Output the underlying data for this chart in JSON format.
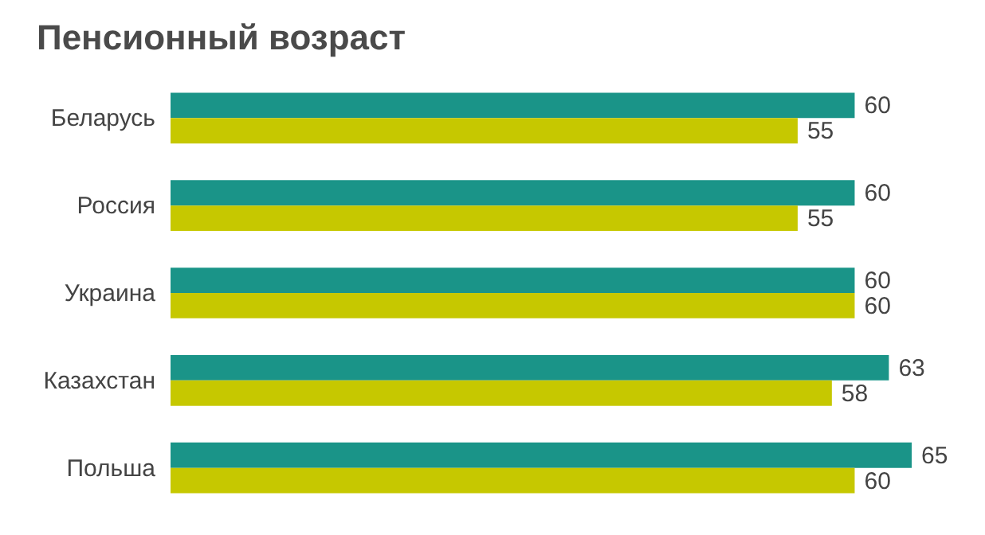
{
  "chart_data": {
    "type": "bar",
    "orientation": "horizontal",
    "title": "Пенсионный возраст",
    "categories": [
      "Беларусь",
      "Россия",
      "Украина",
      "Казахстан",
      "Польша"
    ],
    "series": [
      {
        "color": "#1a9488",
        "values": [
          60,
          60,
          60,
          63,
          65
        ]
      },
      {
        "color": "#c6c800",
        "values": [
          55,
          55,
          60,
          58,
          60
        ]
      }
    ],
    "tick_labels": "y",
    "data_labels": true
  }
}
